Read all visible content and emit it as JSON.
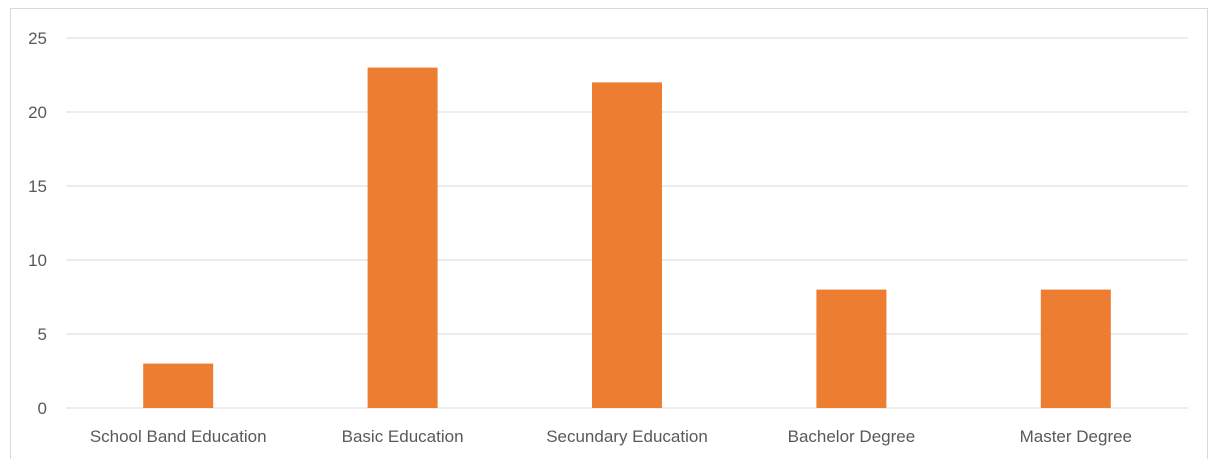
{
  "chart_data": {
    "type": "bar",
    "title": "",
    "xlabel": "",
    "ylabel": "",
    "categories": [
      "School Band Education",
      "Basic Education",
      "Secundary Education",
      "Bachelor Degree",
      "Master Degree"
    ],
    "values": [
      3,
      23,
      22,
      8,
      8
    ],
    "ylim": [
      0,
      25
    ],
    "yticks": [
      0,
      5,
      10,
      15,
      20,
      25
    ],
    "grid": true,
    "legend": "none",
    "bar_color": "#ED7D31",
    "grid_color": "#D9D9D9",
    "label_color": "#595959"
  }
}
